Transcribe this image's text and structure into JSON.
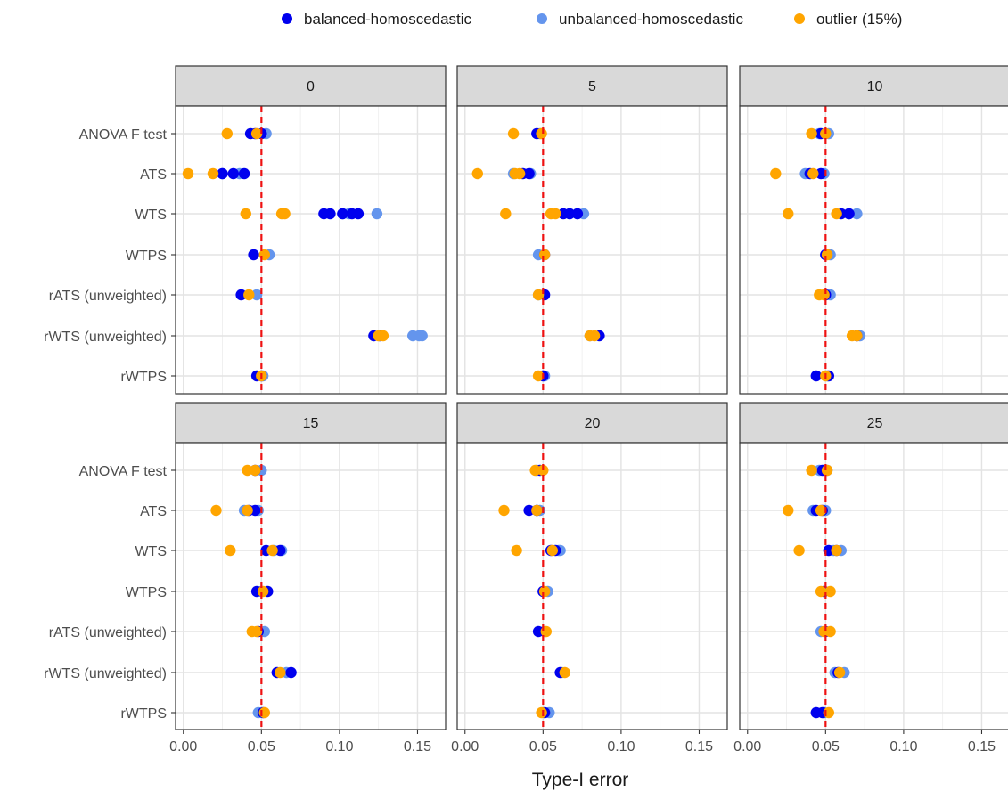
{
  "chart_data": {
    "type": "scatter",
    "xlabel": "Type-I error",
    "ylabel": "",
    "xlim": [
      -0.005,
      0.168
    ],
    "x_ticks": [
      0,
      0.05,
      0.1,
      0.15
    ],
    "x_tick_labels": [
      "0.00",
      "0.05",
      "0.10",
      "0.15"
    ],
    "reference_line": {
      "x": 0.05,
      "color": "#ee1111",
      "style": "dashed"
    },
    "grid": true,
    "legend": {
      "placement": "top",
      "entries": [
        {
          "name": "balanced-homoscedastic",
          "color": "#0000ee"
        },
        {
          "name": "unbalanced-homoscedastic",
          "color": "#6495ed"
        },
        {
          "name": "outlier (15%)",
          "color": "#ffa500"
        }
      ]
    },
    "tests": [
      "ANOVA F test",
      "ATS",
      "WTS",
      "WTPS",
      "rATS (unweighted)",
      "rWTS (unweighted)",
      "rWTPS"
    ],
    "panels": [
      {
        "label": "0",
        "points": {
          "balanced-homoscedastic": [
            [
              0.043,
              0.046,
              0.05
            ],
            [
              0.025,
              0.032,
              0.039
            ],
            [
              0.09,
              0.094,
              0.102,
              0.108,
              0.112
            ],
            [
              0.045
            ],
            [
              0.037
            ],
            [
              0.122,
              0.126
            ],
            [
              0.047,
              0.05
            ]
          ],
          "unbalanced-homoscedastic": [
            [
              0.05,
              0.053
            ],
            [
              0.025,
              0.036
            ],
            [
              0.102,
              0.106,
              0.124
            ],
            [
              0.055
            ],
            [
              0.047
            ],
            [
              0.147,
              0.151,
              0.153
            ],
            [
              0.051
            ]
          ],
          "outlier (15%)": [
            [
              0.028,
              0.047
            ],
            [
              0.003,
              0.019
            ],
            [
              0.04,
              0.063,
              0.065
            ],
            [
              0.052
            ],
            [
              0.042
            ],
            [
              0.125,
              0.128
            ],
            [
              0.05
            ]
          ]
        }
      },
      {
        "label": "5",
        "points": {
          "balanced-homoscedastic": [
            [
              0.046
            ],
            [
              0.037,
              0.041
            ],
            [
              0.063,
              0.067,
              0.072
            ],
            [
              0.051
            ],
            [
              0.051
            ],
            [
              0.086
            ],
            [
              0.05
            ]
          ],
          "unbalanced-homoscedastic": [
            [
              0.048
            ],
            [
              0.031,
              0.042
            ],
            [
              0.067,
              0.072,
              0.076
            ],
            [
              0.047
            ],
            [
              0.047
            ],
            [
              0.08
            ],
            [
              0.051
            ]
          ],
          "outlier (15%)": [
            [
              0.031,
              0.049
            ],
            [
              0.008,
              0.032,
              0.035
            ],
            [
              0.026,
              0.055,
              0.058
            ],
            [
              0.051
            ],
            [
              0.047
            ],
            [
              0.08,
              0.083
            ],
            [
              0.047
            ]
          ]
        }
      },
      {
        "label": "10",
        "points": {
          "balanced-homoscedastic": [
            [
              0.047
            ],
            [
              0.04,
              0.047
            ],
            [
              0.06,
              0.065
            ],
            [
              0.05
            ],
            [
              0.05
            ],
            [
              0.07
            ],
            [
              0.044,
              0.052
            ]
          ],
          "unbalanced-homoscedastic": [
            [
              0.046,
              0.052
            ],
            [
              0.037,
              0.049
            ],
            [
              0.065,
              0.07
            ],
            [
              0.053
            ],
            [
              0.053
            ],
            [
              0.072
            ],
            [
              0.051
            ]
          ],
          "outlier (15%)": [
            [
              0.041,
              0.05
            ],
            [
              0.018,
              0.042
            ],
            [
              0.026,
              0.057
            ],
            [
              0.051
            ],
            [
              0.046,
              0.049
            ],
            [
              0.067,
              0.07
            ],
            [
              0.05
            ]
          ]
        }
      },
      {
        "label": "15",
        "points": {
          "balanced-homoscedastic": [
            [
              0.046
            ],
            [
              0.042,
              0.046
            ],
            [
              0.053,
              0.062
            ],
            [
              0.047,
              0.054
            ],
            [
              0.048
            ],
            [
              0.06,
              0.069
            ],
            [
              0.051
            ]
          ],
          "unbalanced-homoscedastic": [
            [
              0.05
            ],
            [
              0.039,
              0.048
            ],
            [
              0.058,
              0.063
            ],
            [
              0.05
            ],
            [
              0.052
            ],
            [
              0.066
            ],
            [
              0.048
            ]
          ],
          "outlier (15%)": [
            [
              0.041,
              0.046
            ],
            [
              0.021,
              0.041
            ],
            [
              0.03,
              0.057
            ],
            [
              0.051
            ],
            [
              0.044,
              0.047
            ],
            [
              0.062
            ],
            [
              0.052
            ]
          ]
        }
      },
      {
        "label": "20",
        "points": {
          "balanced-homoscedastic": [
            [
              0.048
            ],
            [
              0.041,
              0.046
            ],
            [
              0.055,
              0.058
            ],
            [
              0.05
            ],
            [
              0.047
            ],
            [
              0.061
            ],
            [
              0.051
            ]
          ],
          "unbalanced-homoscedastic": [
            [
              0.046
            ],
            [
              0.046,
              0.048
            ],
            [
              0.06,
              0.061
            ],
            [
              0.053
            ],
            [
              0.051
            ],
            [
              0.062
            ],
            [
              0.054
            ]
          ],
          "outlier (15%)": [
            [
              0.045,
              0.05
            ],
            [
              0.025,
              0.046
            ],
            [
              0.033,
              0.056
            ],
            [
              0.051
            ],
            [
              0.052
            ],
            [
              0.064
            ],
            [
              0.049
            ]
          ]
        }
      },
      {
        "label": "25",
        "points": {
          "balanced-homoscedastic": [
            [
              0.048
            ],
            [
              0.044,
              0.048
            ],
            [
              0.052,
              0.057
            ],
            [
              0.049
            ],
            [
              0.05
            ],
            [
              0.058
            ],
            [
              0.044,
              0.048
            ]
          ],
          "unbalanced-homoscedastic": [
            [
              0.046,
              0.051
            ],
            [
              0.042,
              0.05
            ],
            [
              0.055,
              0.06
            ],
            [
              0.049
            ],
            [
              0.047
            ],
            [
              0.056,
              0.062
            ],
            [
              0.049
            ]
          ],
          "outlier (15%)": [
            [
              0.041,
              0.051
            ],
            [
              0.026,
              0.047
            ],
            [
              0.033,
              0.057
            ],
            [
              0.047,
              0.053
            ],
            [
              0.049,
              0.053
            ],
            [
              0.059
            ],
            [
              0.052
            ]
          ]
        }
      }
    ]
  }
}
